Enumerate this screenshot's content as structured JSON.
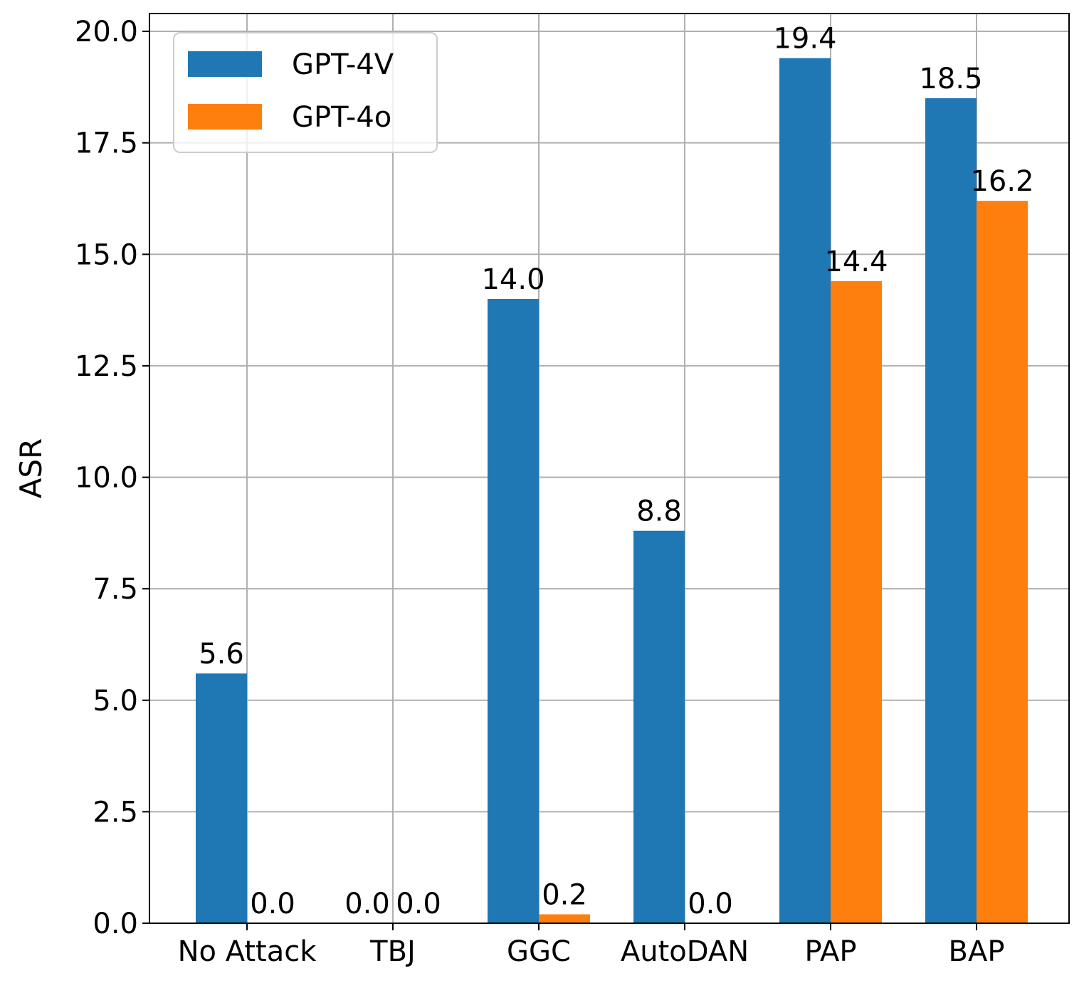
{
  "chart_data": {
    "type": "bar",
    "categories": [
      "No Attack",
      "TBJ",
      "GGC",
      "AutoDAN",
      "PAP",
      "BAP"
    ],
    "series": [
      {
        "name": "GPT-4V",
        "color": "#1f77b4",
        "values": [
          5.6,
          0.0,
          14.0,
          8.8,
          19.4,
          18.5
        ],
        "labels": [
          "5.6",
          "0.0",
          "14.0",
          "8.8",
          "19.4",
          "18.5"
        ]
      },
      {
        "name": "GPT-4o",
        "color": "#ff7f0e",
        "values": [
          0.0,
          0.0,
          0.2,
          0.0,
          14.4,
          16.2
        ],
        "labels": [
          "0.0",
          "0.0",
          "0.2",
          "0.0",
          "14.4",
          "16.2"
        ]
      }
    ],
    "ylabel": "ASR",
    "xlabel": "",
    "ylim": [
      0,
      20.4
    ],
    "yticks": [
      0.0,
      2.5,
      5.0,
      7.5,
      10.0,
      12.5,
      15.0,
      17.5,
      20.0
    ],
    "ytick_labels": [
      "0.0",
      "2.5",
      "5.0",
      "7.5",
      "10.0",
      "12.5",
      "15.0",
      "17.5",
      "20.0"
    ],
    "grid": true,
    "legend_position": "top-left"
  }
}
